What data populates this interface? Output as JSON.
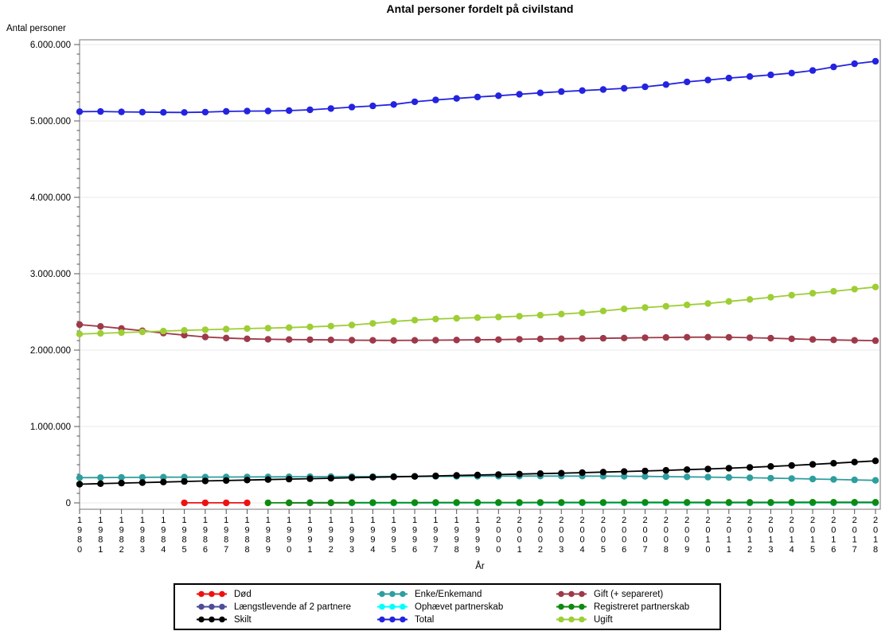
{
  "chart_data": {
    "type": "line",
    "title": "Antal personer fordelt på civilstand",
    "ylabel": "Antal personer",
    "xlabel": "År",
    "ylim": [
      0,
      6000000
    ],
    "ytick_interval": 1000000,
    "yminor_per_major": 8,
    "ytick_labels": [
      "0",
      "1.000.000",
      "2.000.000",
      "3.000.000",
      "4.000.000",
      "5.000.000",
      "6.000.000"
    ],
    "grid": "horizontal major gridlines, light gray",
    "legend_position": "bottom-center box, 3 columns",
    "marker_style": "filled circle on line",
    "categories": [
      "1980",
      "1981",
      "1982",
      "1983",
      "1984",
      "1985",
      "1986",
      "1987",
      "1988",
      "1989",
      "1990",
      "1991",
      "1992",
      "1993",
      "1994",
      "1995",
      "1996",
      "1997",
      "1998",
      "1999",
      "2000",
      "2001",
      "2002",
      "2003",
      "2004",
      "2005",
      "2006",
      "2007",
      "2008",
      "2009",
      "2010",
      "2011",
      "2012",
      "2013",
      "2014",
      "2015",
      "2016",
      "2017",
      "2018"
    ],
    "series": [
      {
        "id": "dod",
        "name": "Død",
        "color": "#EE1111",
        "values": [
          null,
          null,
          null,
          null,
          null,
          1000,
          1000,
          1000,
          1000,
          null,
          null,
          null,
          null,
          null,
          null,
          null,
          null,
          null,
          null,
          null,
          null,
          null,
          null,
          null,
          null,
          null,
          null,
          null,
          null,
          null,
          null,
          null,
          null,
          null,
          null,
          null,
          null,
          null,
          null
        ]
      },
      {
        "id": "enke-enkemand",
        "name": "Enke/Enkemand",
        "color": "#2E9E9E",
        "values": [
          330000,
          331500,
          333000,
          334500,
          336000,
          337000,
          338000,
          339000,
          340000,
          341000,
          342000,
          343000,
          344000,
          344500,
          345000,
          345500,
          346000,
          347000,
          348000,
          349000,
          350000,
          351000,
          351500,
          351500,
          351000,
          350000,
          348500,
          346500,
          344000,
          341000,
          337500,
          333500,
          329000,
          324000,
          318500,
          313000,
          307000,
          301000,
          295000
        ]
      },
      {
        "id": "gift-separeret",
        "name": "Gift (+ separeret)",
        "color": "#9E3949",
        "values": [
          2333000,
          2310000,
          2283000,
          2253000,
          2223000,
          2196000,
          2172000,
          2158000,
          2148000,
          2142000,
          2139000,
          2136000,
          2133000,
          2130000,
          2128000,
          2127000,
          2128000,
          2130000,
          2132000,
          2135000,
          2138000,
          2142000,
          2146000,
          2149000,
          2152000,
          2155000,
          2158000,
          2162000,
          2166000,
          2169000,
          2170000,
          2168000,
          2163000,
          2156000,
          2148000,
          2140000,
          2133000,
          2128000,
          2124000
        ]
      },
      {
        "id": "laengstlevende-af-2-partnere",
        "name": "Længstlevende af 2 partnere",
        "color": "#4D4D99",
        "values": [
          null,
          null,
          null,
          null,
          null,
          null,
          null,
          null,
          null,
          null,
          100,
          150,
          200,
          250,
          300,
          350,
          400,
          450,
          500,
          550,
          600,
          650,
          700,
          750,
          800,
          850,
          900,
          950,
          1000,
          1050,
          1100,
          1150,
          1200,
          1250,
          1300,
          1350,
          1400,
          1450,
          1500
        ]
      },
      {
        "id": "ophaevet-partnerskab",
        "name": "Ophævet partnerskab",
        "color": "#00FFFF",
        "values": [
          null,
          null,
          null,
          null,
          null,
          null,
          null,
          null,
          null,
          null,
          null,
          null,
          null,
          200,
          350,
          500,
          650,
          800,
          950,
          1100,
          1250,
          1400,
          1550,
          1700,
          1850,
          2000,
          2150,
          2300,
          2450,
          2600,
          2750,
          2900,
          3050,
          3200,
          3350,
          3500,
          3650,
          3800,
          3950
        ]
      },
      {
        "id": "registreret-partnerskab",
        "name": "Registreret partnerskab",
        "color": "#0E8A0E",
        "values": [
          null,
          null,
          null,
          null,
          null,
          null,
          null,
          null,
          null,
          1500,
          2200,
          2700,
          3100,
          3500,
          3900,
          4200,
          4500,
          4800,
          5100,
          5300,
          5500,
          5700,
          5900,
          6100,
          6300,
          6500,
          6700,
          6900,
          7100,
          7300,
          7500,
          7600,
          7700,
          7800,
          7900,
          8000,
          8100,
          8200,
          8300
        ]
      },
      {
        "id": "skilt",
        "name": "Skilt",
        "color": "#000000",
        "values": [
          245000,
          252000,
          259000,
          266000,
          273000,
          280000,
          287000,
          293000,
          299000,
          305000,
          311000,
          317000,
          323000,
          329000,
          335000,
          341000,
          347000,
          353000,
          359000,
          365000,
          371000,
          377000,
          383000,
          389000,
          396000,
          403000,
          410000,
          418000,
          426000,
          435000,
          444000,
          454000,
          465000,
          477000,
          490000,
          504000,
          519000,
          534000,
          550000
        ]
      },
      {
        "id": "total",
        "name": "Total",
        "color": "#2323E0",
        "values": [
          5122000,
          5124000,
          5119000,
          5116000,
          5112000,
          5111000,
          5116000,
          5125000,
          5129000,
          5130000,
          5135000,
          5146000,
          5162000,
          5181000,
          5197000,
          5216000,
          5251000,
          5275000,
          5295000,
          5314000,
          5330000,
          5349000,
          5368000,
          5384000,
          5398000,
          5411000,
          5427000,
          5447000,
          5476000,
          5511000,
          5535000,
          5561000,
          5581000,
          5603000,
          5627000,
          5660000,
          5707000,
          5749000,
          5781000
        ]
      },
      {
        "id": "ugift",
        "name": "Ugift",
        "color": "#9DCE34",
        "values": [
          2210000,
          2220000,
          2229000,
          2239000,
          2249000,
          2258000,
          2267000,
          2275000,
          2282000,
          2288000,
          2295000,
          2304000,
          2315000,
          2328000,
          2350000,
          2375000,
          2393000,
          2407000,
          2417000,
          2425000,
          2433000,
          2444000,
          2457000,
          2472000,
          2489000,
          2513000,
          2540000,
          2557000,
          2574000,
          2592000,
          2610000,
          2637000,
          2664000,
          2692000,
          2720000,
          2745000,
          2770000,
          2798000,
          2826000
        ]
      }
    ]
  }
}
